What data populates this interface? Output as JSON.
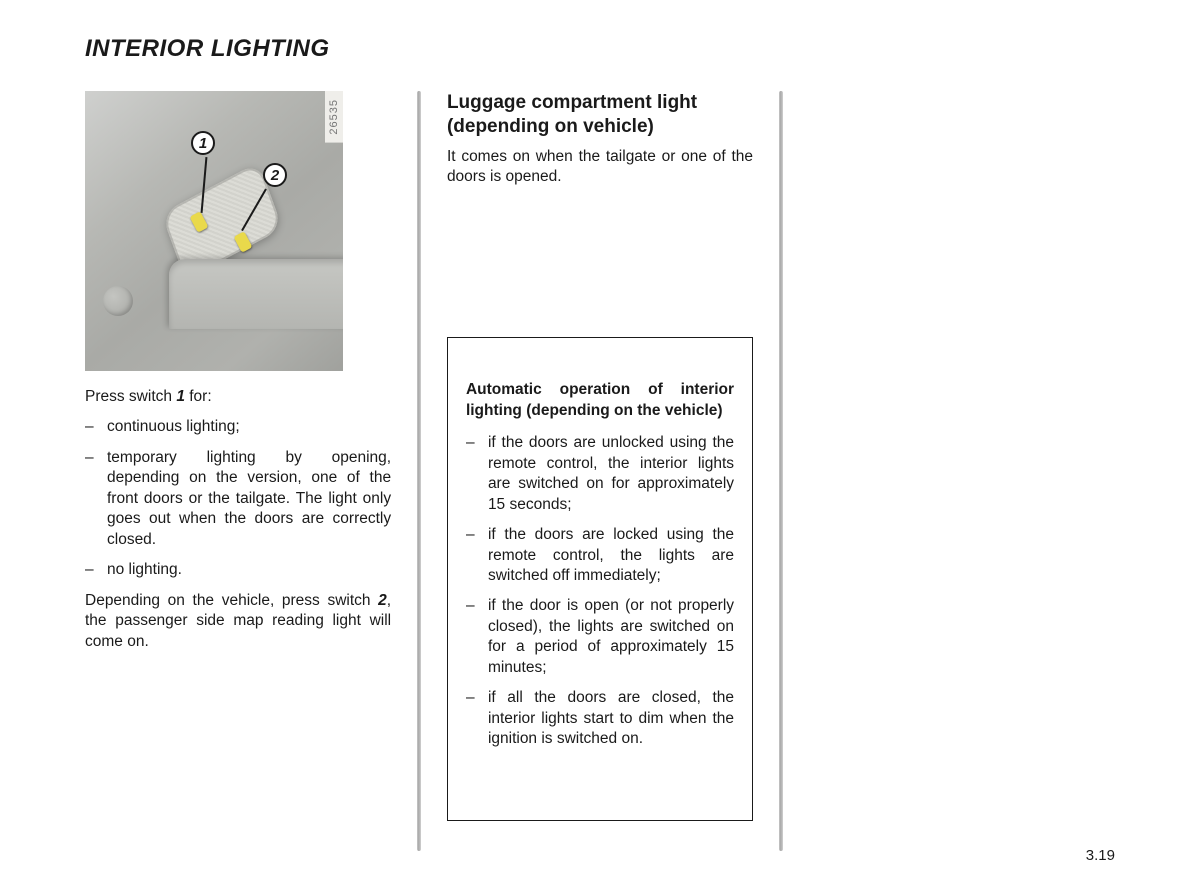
{
  "page_title": "INTERIOR LIGHTING",
  "page_number": "3.19",
  "figure": {
    "photo_ref": "26535",
    "callouts": {
      "c1": "1",
      "c2": "2"
    }
  },
  "col1": {
    "intro_pre": "Press switch ",
    "intro_em": "1",
    "intro_post": " for:",
    "bullets": [
      "continuous lighting;",
      "temporary lighting by opening, depending on the version, one of the front doors or the tailgate. The light only goes out when the doors are correctly closed.",
      "no lighting."
    ],
    "closing_pre": "Depending on the vehicle, press switch ",
    "closing_em": "2",
    "closing_post": ", the passenger side map reading light will come on."
  },
  "col2": {
    "heading": "Luggage compartment light (depending on vehicle)",
    "body": "It comes on when the tailgate or one of the doors is opened.",
    "note_title": "Automatic operation of interior lighting (depending on the vehicle)",
    "note_bullets": [
      "if the doors are unlocked using the remote control, the interior lights are switched on for approximately 15 seconds;",
      "if the doors are locked using the remote control, the lights are switched off immediately;",
      "if the door is open (or not properly closed), the lights are switched on for a period of approximately 15 minutes;",
      "if all the doors are closed, the interior lights start to dim when the ignition is switched on."
    ]
  }
}
